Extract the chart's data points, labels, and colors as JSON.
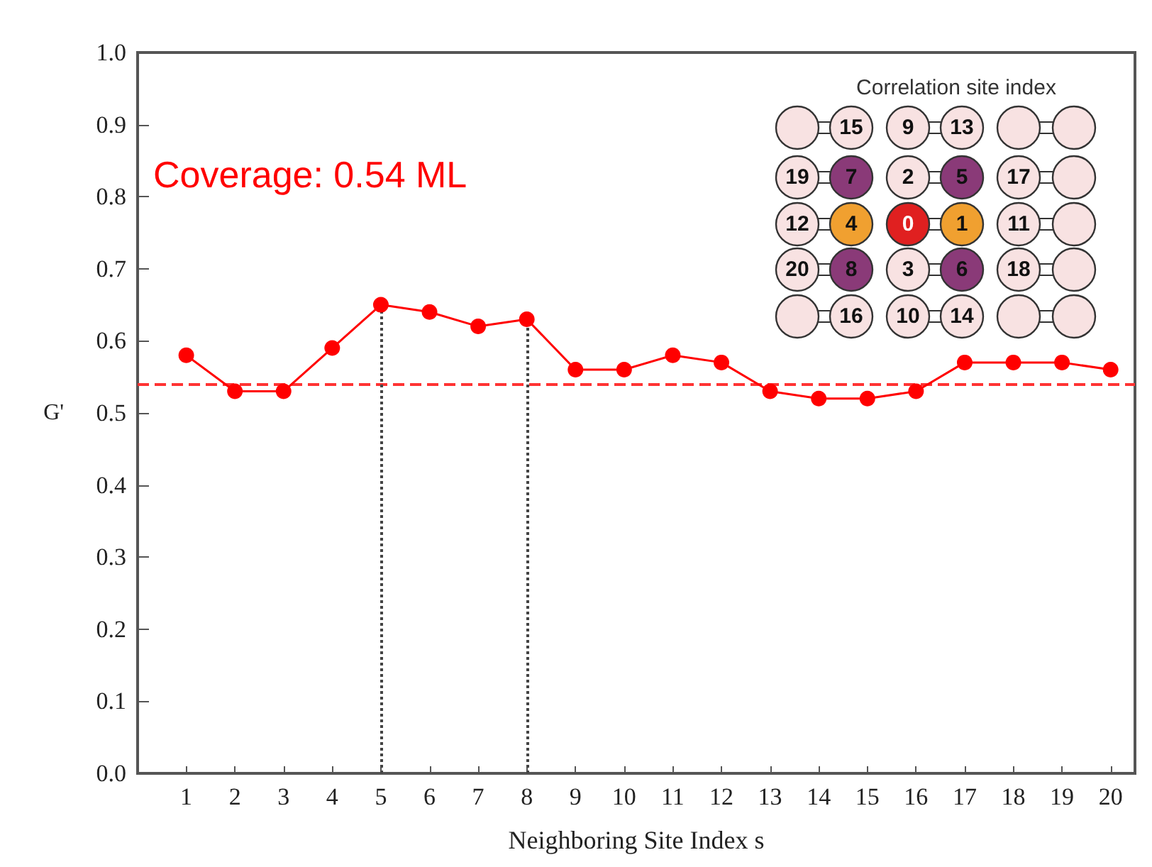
{
  "chart_data": {
    "type": "line",
    "xlabel": "Neighboring Site Index s",
    "ylabel": "G'",
    "x": [
      1,
      2,
      3,
      4,
      5,
      6,
      7,
      8,
      9,
      10,
      11,
      12,
      13,
      14,
      15,
      16,
      17,
      18,
      19,
      20
    ],
    "series": [
      {
        "color": "#ff0000",
        "values": [
          0.58,
          0.53,
          0.53,
          0.59,
          0.65,
          0.64,
          0.62,
          0.63,
          0.56,
          0.56,
          0.58,
          0.57,
          0.53,
          0.52,
          0.52,
          0.53,
          0.57,
          0.57,
          0.57,
          0.56
        ]
      }
    ],
    "xlim": [
      0,
      20.5
    ],
    "xticks": [
      1,
      2,
      3,
      4,
      5,
      6,
      7,
      8,
      9,
      10,
      11,
      12,
      13,
      14,
      15,
      16,
      17,
      18,
      19,
      20
    ],
    "ylim": [
      0,
      1.0
    ],
    "yticks": [
      {
        "value": 0,
        "label": "0.0"
      },
      0.1,
      0.2,
      0.3,
      0.4,
      0.5,
      0.6,
      0.7,
      0.8,
      0.9,
      {
        "value": 1,
        "label": "1.0"
      }
    ],
    "ref_lines": [
      {
        "axis": "y",
        "value": 0.54,
        "color": "#ff3333",
        "line_style": "dashed"
      },
      {
        "axis": "x",
        "value": 5,
        "color": "#444444",
        "line_style": "dotted"
      },
      {
        "axis": "x",
        "value": 8,
        "color": "#444444",
        "line_style": "dotted"
      }
    ],
    "annotations": [
      "Coverage: 0.54 ML",
      "Correlation site index",
      "15",
      "9",
      "13",
      "19",
      "7",
      "2",
      "5",
      "17",
      "12",
      "4",
      "0",
      "1",
      "11",
      "20",
      "8",
      "3",
      "6",
      "18",
      "16",
      "10",
      "14"
    ],
    "grid": false,
    "marker": "circle",
    "line_style": "solid"
  }
}
